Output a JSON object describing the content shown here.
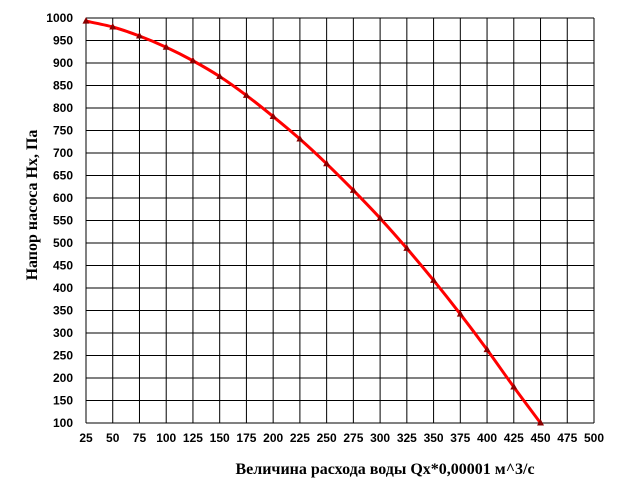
{
  "chart_data": {
    "type": "line",
    "xlabel": "Величина расхода воды Qx*0,00001 м^3/с",
    "ylabel": "Напор насоса Hx, Па",
    "xlim": [
      25,
      500
    ],
    "ylim": [
      100,
      1000
    ],
    "x_ticks": [
      25,
      50,
      75,
      100,
      125,
      150,
      175,
      200,
      225,
      250,
      275,
      300,
      325,
      350,
      375,
      400,
      425,
      450,
      475,
      500
    ],
    "y_ticks": [
      100,
      150,
      200,
      250,
      300,
      350,
      400,
      450,
      500,
      550,
      600,
      650,
      700,
      750,
      800,
      850,
      900,
      950,
      1000
    ],
    "grid": true,
    "line_color": "#ff0000",
    "marker_color": "#8b0000",
    "series": [
      {
        "x": [
          25,
          50,
          75,
          100,
          125,
          150,
          175,
          200,
          225,
          250,
          275,
          300,
          325,
          350,
          375,
          400,
          425,
          450
        ],
        "values": [
          993,
          980,
          960,
          935,
          905,
          870,
          828,
          781,
          731,
          676,
          617,
          555,
          488,
          417,
          342,
          263,
          180,
          100
        ]
      }
    ]
  }
}
